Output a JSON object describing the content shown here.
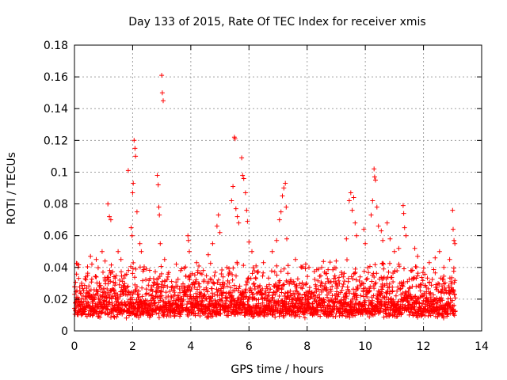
{
  "chart_data": {
    "type": "scatter",
    "title": "Day 133 of 2015, Rate Of TEC Index for receiver xmis",
    "xlabel": "GPS time / hours",
    "ylabel": "ROTI / TECUs",
    "xlim": [
      0,
      14
    ],
    "ylim": [
      0,
      0.18
    ],
    "x_ticks": [
      0,
      2,
      4,
      6,
      8,
      10,
      12,
      14
    ],
    "y_ticks": [
      0,
      0.02,
      0.04,
      0.06,
      0.08,
      0.1,
      0.12,
      0.14,
      0.16,
      0.18
    ],
    "x_tick_labels": [
      "0",
      "2",
      "4",
      "6",
      "8",
      "10",
      "12",
      "14"
    ],
    "y_tick_labels": [
      "0",
      "0.02",
      "0.04",
      "0.06",
      "0.08",
      "0.1",
      "0.12",
      "0.14",
      "0.16",
      "0.18"
    ],
    "grid": true,
    "marker": "+",
    "series": [
      {
        "name": "ROTI",
        "color": "#ff0000",
        "baseline": {
          "x_range": [
            0,
            13.1
          ],
          "y_range": [
            0.005,
            0.045
          ]
        },
        "points": [
          {
            "x": 0.05,
            "y": 0.018
          },
          {
            "x": 0.3,
            "y": 0.022
          },
          {
            "x": 0.45,
            "y": 0.035
          },
          {
            "x": 0.55,
            "y": 0.047
          },
          {
            "x": 0.6,
            "y": 0.042
          },
          {
            "x": 0.75,
            "y": 0.045
          },
          {
            "x": 0.95,
            "y": 0.05
          },
          {
            "x": 1.05,
            "y": 0.044
          },
          {
            "x": 1.15,
            "y": 0.08
          },
          {
            "x": 1.2,
            "y": 0.072
          },
          {
            "x": 1.25,
            "y": 0.07
          },
          {
            "x": 1.5,
            "y": 0.05
          },
          {
            "x": 1.6,
            "y": 0.045
          },
          {
            "x": 1.85,
            "y": 0.101
          },
          {
            "x": 1.95,
            "y": 0.065
          },
          {
            "x": 1.98,
            "y": 0.06
          },
          {
            "x": 2.0,
            "y": 0.087
          },
          {
            "x": 2.02,
            "y": 0.093
          },
          {
            "x": 2.05,
            "y": 0.12
          },
          {
            "x": 2.08,
            "y": 0.115
          },
          {
            "x": 2.1,
            "y": 0.11
          },
          {
            "x": 2.15,
            "y": 0.075
          },
          {
            "x": 2.25,
            "y": 0.055
          },
          {
            "x": 2.3,
            "y": 0.05
          },
          {
            "x": 2.85,
            "y": 0.098
          },
          {
            "x": 2.88,
            "y": 0.092
          },
          {
            "x": 2.9,
            "y": 0.078
          },
          {
            "x": 2.92,
            "y": 0.073
          },
          {
            "x": 2.95,
            "y": 0.055
          },
          {
            "x": 3.0,
            "y": 0.161
          },
          {
            "x": 3.02,
            "y": 0.15
          },
          {
            "x": 3.05,
            "y": 0.145
          },
          {
            "x": 3.1,
            "y": 0.045
          },
          {
            "x": 3.5,
            "y": 0.042
          },
          {
            "x": 3.65,
            "y": 0.038
          },
          {
            "x": 3.9,
            "y": 0.06
          },
          {
            "x": 3.92,
            "y": 0.057
          },
          {
            "x": 3.95,
            "y": 0.05
          },
          {
            "x": 4.2,
            "y": 0.043
          },
          {
            "x": 4.6,
            "y": 0.048
          },
          {
            "x": 4.75,
            "y": 0.055
          },
          {
            "x": 4.9,
            "y": 0.066
          },
          {
            "x": 4.95,
            "y": 0.073
          },
          {
            "x": 5.0,
            "y": 0.062
          },
          {
            "x": 5.4,
            "y": 0.082
          },
          {
            "x": 5.45,
            "y": 0.091
          },
          {
            "x": 5.5,
            "y": 0.122
          },
          {
            "x": 5.52,
            "y": 0.121
          },
          {
            "x": 5.55,
            "y": 0.077
          },
          {
            "x": 5.6,
            "y": 0.072
          },
          {
            "x": 5.65,
            "y": 0.068
          },
          {
            "x": 5.75,
            "y": 0.109
          },
          {
            "x": 5.78,
            "y": 0.098
          },
          {
            "x": 5.82,
            "y": 0.096
          },
          {
            "x": 5.88,
            "y": 0.087
          },
          {
            "x": 5.92,
            "y": 0.076
          },
          {
            "x": 5.95,
            "y": 0.069
          },
          {
            "x": 6.0,
            "y": 0.056
          },
          {
            "x": 6.1,
            "y": 0.05
          },
          {
            "x": 6.5,
            "y": 0.043
          },
          {
            "x": 6.8,
            "y": 0.05
          },
          {
            "x": 6.95,
            "y": 0.057
          },
          {
            "x": 7.05,
            "y": 0.07
          },
          {
            "x": 7.1,
            "y": 0.075
          },
          {
            "x": 7.15,
            "y": 0.085
          },
          {
            "x": 7.2,
            "y": 0.09
          },
          {
            "x": 7.25,
            "y": 0.093
          },
          {
            "x": 7.28,
            "y": 0.078
          },
          {
            "x": 7.3,
            "y": 0.058
          },
          {
            "x": 7.6,
            "y": 0.045
          },
          {
            "x": 7.95,
            "y": 0.042
          },
          {
            "x": 8.5,
            "y": 0.04
          },
          {
            "x": 9.0,
            "y": 0.044
          },
          {
            "x": 9.35,
            "y": 0.058
          },
          {
            "x": 9.45,
            "y": 0.082
          },
          {
            "x": 9.5,
            "y": 0.087
          },
          {
            "x": 9.55,
            "y": 0.076
          },
          {
            "x": 9.6,
            "y": 0.084
          },
          {
            "x": 9.65,
            "y": 0.068
          },
          {
            "x": 9.7,
            "y": 0.06
          },
          {
            "x": 9.95,
            "y": 0.064
          },
          {
            "x": 10.0,
            "y": 0.055
          },
          {
            "x": 10.2,
            "y": 0.073
          },
          {
            "x": 10.25,
            "y": 0.082
          },
          {
            "x": 10.3,
            "y": 0.102
          },
          {
            "x": 10.32,
            "y": 0.097
          },
          {
            "x": 10.35,
            "y": 0.095
          },
          {
            "x": 10.4,
            "y": 0.078
          },
          {
            "x": 10.45,
            "y": 0.066
          },
          {
            "x": 10.55,
            "y": 0.063
          },
          {
            "x": 10.6,
            "y": 0.057
          },
          {
            "x": 10.75,
            "y": 0.068
          },
          {
            "x": 10.85,
            "y": 0.058
          },
          {
            "x": 11.0,
            "y": 0.05
          },
          {
            "x": 11.15,
            "y": 0.052
          },
          {
            "x": 11.3,
            "y": 0.079
          },
          {
            "x": 11.32,
            "y": 0.074
          },
          {
            "x": 11.35,
            "y": 0.065
          },
          {
            "x": 11.4,
            "y": 0.06
          },
          {
            "x": 11.7,
            "y": 0.052
          },
          {
            "x": 11.8,
            "y": 0.047
          },
          {
            "x": 12.2,
            "y": 0.043
          },
          {
            "x": 12.4,
            "y": 0.046
          },
          {
            "x": 12.55,
            "y": 0.05
          },
          {
            "x": 12.7,
            "y": 0.04
          },
          {
            "x": 12.9,
            "y": 0.045
          },
          {
            "x": 13.0,
            "y": 0.076
          },
          {
            "x": 13.02,
            "y": 0.064
          },
          {
            "x": 13.05,
            "y": 0.057
          },
          {
            "x": 13.08,
            "y": 0.055
          }
        ]
      }
    ]
  }
}
